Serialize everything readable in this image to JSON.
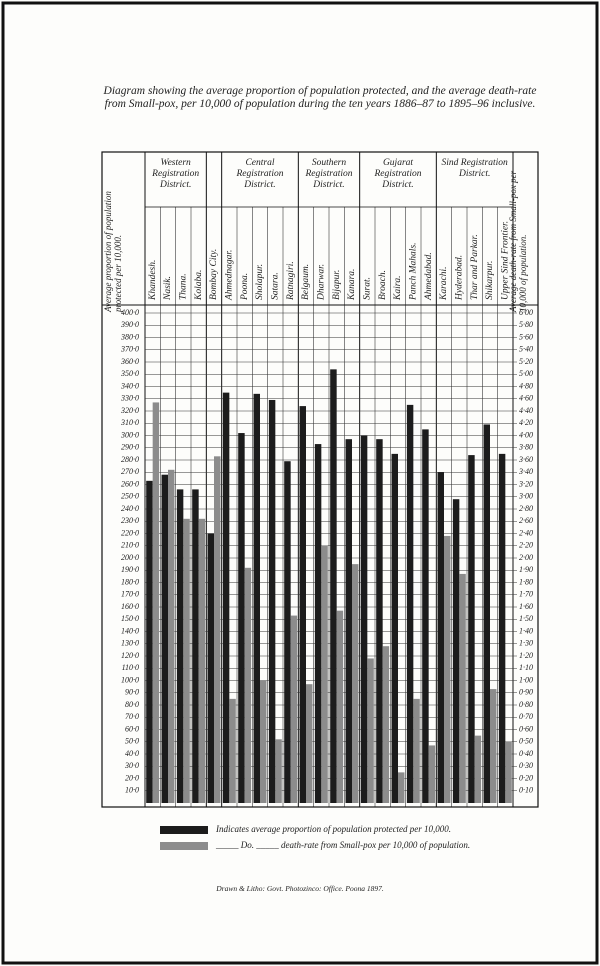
{
  "chart_data": {
    "type": "bar",
    "title": "Diagram showing the average proportion of population protected, and the average death-rate from Small-pox, per 10,000 of population during the ten years 1886–87 to 1895–96 inclusive.",
    "ylabel": "Average proportion of population protected per 10,000.",
    "y2label": "Average death-rate from Small-pox per 10,000 of population.",
    "group_labels": [
      "Western Registration District.",
      "Central Registration District.",
      "Southern Registration District.",
      "Gujarat Registration District.",
      "Sind Registration District."
    ],
    "categories": [
      "Khandesh.",
      "Nasik.",
      "Thana.",
      "Kolaba.",
      "Bombay City.",
      "Ahmednagar.",
      "Poona.",
      "Sholapur.",
      "Satara.",
      "Ratnagiri.",
      "Belgaum.",
      "Dharwar.",
      "Bijapur.",
      "Kanara.",
      "Surat.",
      "Broach.",
      "Kaira.",
      "Panch Mahals.",
      "Ahmedabad.",
      "Karachi.",
      "Hyderabad.",
      "Thar and Parkar.",
      "Shikarpur.",
      "Upper Sind Frontier."
    ],
    "series": [
      {
        "name": "Indicates average proportion of population protected per 10,000.",
        "color": "#1c1c1c",
        "values": [
          263,
          268,
          256,
          256,
          220,
          335,
          302,
          334,
          329,
          279,
          324,
          293,
          354,
          297,
          300,
          297,
          285,
          325,
          305,
          270,
          248,
          284,
          309,
          285
        ]
      },
      {
        "name": "_____ Do. _____ death-rate from Small-pox per 10,000 of population.",
        "color": "#8c8c8c",
        "axis": "y2",
        "values": [
          4.54,
          3.44,
          2.64,
          2.64,
          3.66,
          0.85,
          1.92,
          1.0,
          0.52,
          1.53,
          0.97,
          2.2,
          1.57,
          1.95,
          1.18,
          1.28,
          0.25,
          0.85,
          0.47,
          2.36,
          1.87,
          0.55,
          0.93,
          0.5
        ]
      }
    ],
    "ylim": [
      0,
      400
    ],
    "yticks": [
      {
        "value": 10,
        "label": "10·0"
      },
      {
        "value": 20,
        "label": "20·0"
      },
      {
        "value": 30,
        "label": "30·0"
      },
      {
        "value": 40,
        "label": "40·0"
      },
      {
        "value": 50,
        "label": "50·0"
      },
      {
        "value": 60,
        "label": "60·0"
      },
      {
        "value": 70,
        "label": "70·0"
      },
      {
        "value": 80,
        "label": "80·0"
      },
      {
        "value": 90,
        "label": "90·0"
      },
      {
        "value": 100,
        "label": "100·0"
      },
      {
        "value": 110,
        "label": "110·0"
      },
      {
        "value": 120,
        "label": "120·0"
      },
      {
        "value": 130,
        "label": "130·0"
      },
      {
        "value": 140,
        "label": "140·0"
      },
      {
        "value": 150,
        "label": "150·0"
      },
      {
        "value": 160,
        "label": "160·0"
      },
      {
        "value": 170,
        "label": "170·0"
      },
      {
        "value": 180,
        "label": "180·0"
      },
      {
        "value": 190,
        "label": "190·0"
      },
      {
        "value": 200,
        "label": "200·0"
      },
      {
        "value": 210,
        "label": "210·0"
      },
      {
        "value": 220,
        "label": "220·0"
      },
      {
        "value": 230,
        "label": "230·0"
      },
      {
        "value": 240,
        "label": "240·0"
      },
      {
        "value": 250,
        "label": "250·0"
      },
      {
        "value": 260,
        "label": "260·0"
      },
      {
        "value": 270,
        "label": "270·0"
      },
      {
        "value": 280,
        "label": "280·0"
      },
      {
        "value": 290,
        "label": "290·0"
      },
      {
        "value": 300,
        "label": "300·0"
      },
      {
        "value": 310,
        "label": "310·0"
      },
      {
        "value": 320,
        "label": "320·0"
      },
      {
        "value": 330,
        "label": "330·0"
      },
      {
        "value": 340,
        "label": "340·0"
      },
      {
        "value": 350,
        "label": "350·0"
      },
      {
        "value": 360,
        "label": "360·0"
      },
      {
        "value": 370,
        "label": "370·0"
      },
      {
        "value": 380,
        "label": "380·0"
      },
      {
        "value": 390,
        "label": "390·0"
      },
      {
        "value": 400,
        "label": "400·0"
      }
    ],
    "y2lim": [
      0,
      6
    ],
    "y2ticks": [
      {
        "value": 0.1,
        "label": "0·10"
      },
      {
        "value": 0.2,
        "label": "0·20"
      },
      {
        "value": 0.3,
        "label": "0·30"
      },
      {
        "value": 0.4,
        "label": "0·40"
      },
      {
        "value": 0.5,
        "label": "0·50"
      },
      {
        "value": 0.6,
        "label": "0·60"
      },
      {
        "value": 0.7,
        "label": "0·70"
      },
      {
        "value": 0.8,
        "label": "0·80"
      },
      {
        "value": 0.9,
        "label": "0·90"
      },
      {
        "value": 1.0,
        "label": "1·00"
      },
      {
        "value": 1.1,
        "label": "1·10"
      },
      {
        "value": 1.2,
        "label": "1·20"
      },
      {
        "value": 1.3,
        "label": "1·30"
      },
      {
        "value": 1.4,
        "label": "1·40"
      },
      {
        "value": 1.5,
        "label": "1·50"
      },
      {
        "value": 1.6,
        "label": "1·60"
      },
      {
        "value": 1.7,
        "label": "1·70"
      },
      {
        "value": 1.8,
        "label": "1·80"
      },
      {
        "value": 1.9,
        "label": "1·90"
      },
      {
        "value": 2.0,
        "label": "2·00"
      },
      {
        "value": 2.2,
        "label": "2·20"
      },
      {
        "value": 2.4,
        "label": "2·40"
      },
      {
        "value": 2.6,
        "label": "2·60"
      },
      {
        "value": 2.8,
        "label": "2·80"
      },
      {
        "value": 3.0,
        "label": "3·00"
      },
      {
        "value": 3.2,
        "label": "3·20"
      },
      {
        "value": 3.4,
        "label": "3·40"
      },
      {
        "value": 3.6,
        "label": "3·60"
      },
      {
        "value": 3.8,
        "label": "3·80"
      },
      {
        "value": 4.0,
        "label": "4·00"
      },
      {
        "value": 4.2,
        "label": "4·20"
      },
      {
        "value": 4.4,
        "label": "4·40"
      },
      {
        "value": 4.6,
        "label": "4·60"
      },
      {
        "value": 4.8,
        "label": "4·80"
      },
      {
        "value": 5.0,
        "label": "5·00"
      },
      {
        "value": 5.2,
        "label": "5·20"
      },
      {
        "value": 5.4,
        "label": "5·40"
      },
      {
        "value": 5.6,
        "label": "5·60"
      },
      {
        "value": 5.8,
        "label": "5·80"
      },
      {
        "value": 6.0,
        "label": "6·00"
      }
    ],
    "grid": true,
    "footer": "Drawn & Litho: Govt. Photozinco: Office. Poona 1897."
  }
}
